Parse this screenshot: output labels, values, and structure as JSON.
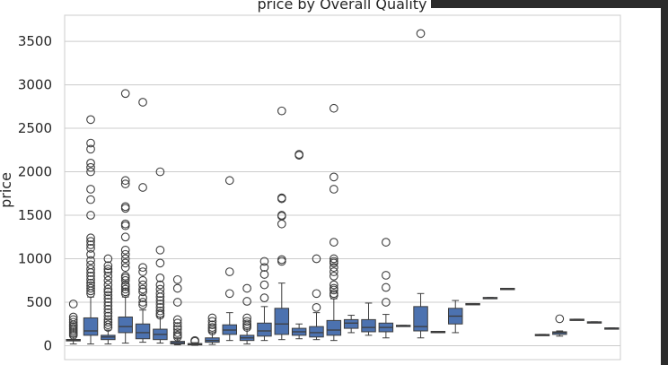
{
  "chart_data": {
    "type": "box",
    "title": "price by Overall Quality",
    "xlabel": "",
    "ylabel": "price",
    "ylim": [
      -160,
      3800
    ],
    "yticks": [
      0,
      500,
      1000,
      1500,
      2000,
      2500,
      3000,
      3500
    ],
    "grid": true,
    "color": "#4c72b0",
    "boxes": [
      {
        "q1": 55,
        "median": 62,
        "q3": 72,
        "lo": 20,
        "hi": 100,
        "outliers": [
          480,
          330,
          300,
          270,
          240,
          220,
          200,
          180,
          160,
          140,
          120
        ]
      },
      {
        "q1": 120,
        "median": 170,
        "q3": 320,
        "lo": 20,
        "hi": 560,
        "outliers": [
          2600,
          2330,
          2260,
          2100,
          2050,
          2000,
          1800,
          1680,
          1500,
          1240,
          1200,
          1160,
          1120,
          1050,
          980,
          930,
          880,
          840,
          800,
          760,
          720,
          690,
          660,
          630,
          600
        ]
      },
      {
        "q1": 70,
        "median": 100,
        "q3": 120,
        "lo": 20,
        "hi": 180,
        "outliers": [
          1000,
          920,
          880,
          850,
          800,
          750,
          700,
          650,
          620,
          580,
          540,
          500,
          460,
          420,
          380,
          340,
          300,
          270,
          240,
          210
        ]
      },
      {
        "q1": 150,
        "median": 220,
        "q3": 330,
        "lo": 30,
        "hi": 560,
        "outliers": [
          2900,
          1900,
          1860,
          1600,
          1580,
          1400,
          1380,
          1250,
          1100,
          1050,
          1000,
          950,
          900,
          800,
          780,
          750,
          700,
          680,
          650,
          620,
          600
        ]
      },
      {
        "q1": 80,
        "median": 150,
        "q3": 250,
        "lo": 40,
        "hi": 410,
        "outliers": [
          2800,
          1820,
          900,
          850,
          750,
          700,
          650,
          620,
          550,
          500,
          470
        ]
      },
      {
        "q1": 70,
        "median": 130,
        "q3": 190,
        "lo": 30,
        "hi": 330,
        "outliers": [
          2000,
          1100,
          950,
          780,
          700,
          650,
          600,
          560,
          520,
          480,
          440,
          400,
          370,
          350
        ]
      },
      {
        "q1": 20,
        "median": 35,
        "q3": 50,
        "lo": 10,
        "hi": 90,
        "outliers": [
          760,
          660,
          500,
          300,
          260,
          220,
          190,
          150,
          120,
          100
        ]
      },
      {
        "q1": 10,
        "median": 15,
        "q3": 25,
        "lo": 5,
        "hi": 35,
        "outliers": [
          60,
          50
        ]
      },
      {
        "q1": 40,
        "median": 60,
        "q3": 90,
        "lo": 15,
        "hi": 150,
        "outliers": [
          320,
          280,
          240,
          210,
          190,
          170
        ]
      },
      {
        "q1": 130,
        "median": 180,
        "q3": 240,
        "lo": 60,
        "hi": 380,
        "outliers": [
          1900,
          850,
          600
        ]
      },
      {
        "q1": 60,
        "median": 90,
        "q3": 120,
        "lo": 20,
        "hi": 190,
        "outliers": [
          660,
          510,
          320,
          280,
          250,
          230,
          210
        ]
      },
      {
        "q1": 110,
        "median": 170,
        "q3": 260,
        "lo": 60,
        "hi": 450,
        "outliers": [
          970,
          900,
          820,
          700,
          550
        ]
      },
      {
        "q1": 130,
        "median": 250,
        "q3": 430,
        "lo": 70,
        "hi": 720,
        "outliers": [
          2700,
          1700,
          1690,
          1500,
          1490,
          1400,
          990,
          970
        ]
      },
      {
        "q1": 120,
        "median": 160,
        "q3": 200,
        "lo": 80,
        "hi": 250,
        "outliers": [
          2200,
          2190
        ]
      },
      {
        "q1": 100,
        "median": 150,
        "q3": 220,
        "lo": 70,
        "hi": 380,
        "outliers": [
          1000,
          600,
          440
        ]
      },
      {
        "q1": 120,
        "median": 180,
        "q3": 290,
        "lo": 60,
        "hi": 540,
        "outliers": [
          2730,
          1940,
          1800,
          1190,
          1000,
          970,
          950,
          900,
          850,
          800,
          700,
          660,
          640,
          600,
          580
        ]
      },
      {
        "q1": 200,
        "median": 260,
        "q3": 300,
        "lo": 150,
        "hi": 350
      },
      {
        "q1": 160,
        "median": 210,
        "q3": 300,
        "lo": 120,
        "hi": 490
      },
      {
        "q1": 160,
        "median": 210,
        "q3": 260,
        "lo": 90,
        "hi": 360,
        "outliers": [
          1190,
          810,
          670,
          500
        ]
      },
      {
        "q1": 225,
        "median": 230,
        "q3": 235,
        "lo": 225,
        "hi": 235
      },
      {
        "q1": 170,
        "median": 220,
        "q3": 450,
        "lo": 90,
        "hi": 600,
        "outliers": [
          3590
        ]
      },
      {
        "q1": 150,
        "median": 160,
        "q3": 165,
        "lo": 150,
        "hi": 165
      },
      {
        "q1": 250,
        "median": 340,
        "q3": 430,
        "lo": 150,
        "hi": 520
      },
      {
        "q1": 475,
        "median": 480,
        "q3": 485,
        "lo": 475,
        "hi": 485
      },
      {
        "q1": 545,
        "median": 550,
        "q3": 555,
        "lo": 545,
        "hi": 555
      },
      {
        "q1": 650,
        "median": 655,
        "q3": 660,
        "lo": 650,
        "hi": 660
      },
      null,
      {
        "q1": 120,
        "median": 125,
        "q3": 130,
        "lo": 120,
        "hi": 130
      },
      {
        "q1": 130,
        "median": 150,
        "q3": 160,
        "lo": 110,
        "hi": 170,
        "outliers": [
          310
        ]
      },
      {
        "q1": 295,
        "median": 300,
        "q3": 305,
        "lo": 295,
        "hi": 305
      },
      {
        "q1": 265,
        "median": 270,
        "q3": 275,
        "lo": 265,
        "hi": 275
      },
      {
        "q1": 195,
        "median": 200,
        "q3": 205,
        "lo": 195,
        "hi": 205
      }
    ]
  }
}
